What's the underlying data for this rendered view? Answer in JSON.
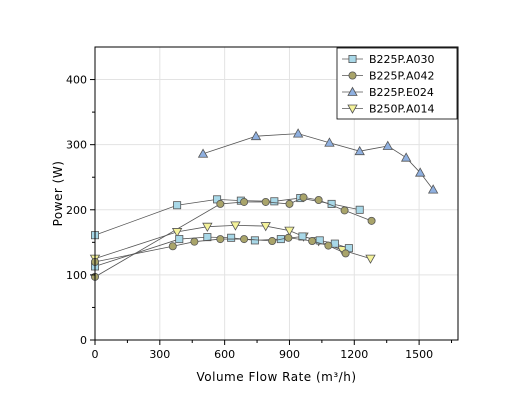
{
  "chart_data": {
    "type": "scatter",
    "xlabel": "Volume Flow Rate (m³/h)",
    "ylabel": "Power (W)",
    "xlim": [
      0,
      1680
    ],
    "ylim": [
      0,
      450
    ],
    "xticks": [
      0,
      300,
      600,
      900,
      1200,
      1500
    ],
    "yticks": [
      0,
      100,
      200,
      300,
      400
    ],
    "grid": true,
    "legend_position": "top-right",
    "series": [
      {
        "name": "B225P.A030",
        "marker": "square",
        "color": "#a8d8e8",
        "x": [
          0,
          380,
          565,
          675,
          830,
          950,
          1095,
          1225
        ],
        "y": [
          161,
          207,
          216,
          214,
          213,
          218,
          209,
          200
        ]
      },
      {
        "name": "B225P.A042",
        "marker": "circle",
        "color": "#a9a46a",
        "x": [
          0,
          580,
          690,
          790,
          900,
          965,
          1035,
          1155,
          1280
        ],
        "y": [
          97,
          209,
          212,
          212,
          209,
          219,
          215,
          199,
          183
        ]
      },
      {
        "name": "B225P.E024",
        "marker": "triangle-up",
        "color": "#8fb0e0",
        "x": [
          500,
          745,
          940,
          1085,
          1225,
          1355,
          1440,
          1505,
          1565
        ],
        "y": [
          286,
          313,
          317,
          303,
          290,
          298,
          280,
          257,
          231
        ]
      },
      {
        "name": "B250P.A014",
        "marker": "triangle-down",
        "color": "#f4f29a",
        "x": [
          0,
          380,
          520,
          650,
          790,
          900,
          965,
          1035,
          1145,
          1275
        ],
        "y": [
          125,
          166,
          174,
          176,
          175,
          168,
          159,
          152,
          138,
          125
        ]
      },
      {
        "name": "",
        "marker": "square",
        "color": "#a8d8e8",
        "x": [
          0,
          390,
          520,
          630,
          740,
          860,
          960,
          1040,
          1110,
          1175
        ],
        "y": [
          113,
          155,
          158,
          157,
          153,
          155,
          159,
          153,
          148,
          141
        ]
      },
      {
        "name": "",
        "marker": "circle",
        "color": "#a9a46a",
        "x": [
          0,
          360,
          460,
          580,
          690,
          820,
          895,
          1005,
          1080,
          1160
        ],
        "y": [
          120,
          144,
          151,
          155,
          155,
          152,
          157,
          152,
          145,
          133
        ]
      }
    ]
  }
}
